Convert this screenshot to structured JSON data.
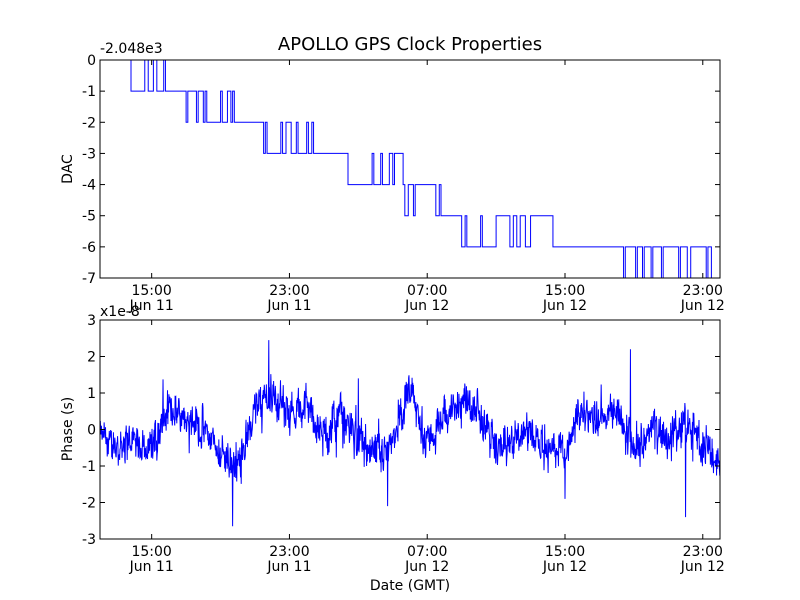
{
  "chart_data": [
    {
      "type": "line",
      "title": "APOLLO GPS Clock Properties",
      "ylabel": "DAC",
      "xlabel": "",
      "offset_label": "-2.048e3",
      "ylim": [
        -7,
        0
      ],
      "yticks": [
        "0",
        "-1",
        "-2",
        "-3",
        "-4",
        "-5",
        "-6",
        "-7"
      ],
      "xlim": [
        0,
        36
      ],
      "xticks": [
        {
          "t": 3,
          "time": "15:00",
          "date": "Jun 11"
        },
        {
          "t": 11,
          "time": "23:00",
          "date": "Jun 11"
        },
        {
          "t": 19,
          "time": "07:00",
          "date": "Jun 12"
        },
        {
          "t": 27,
          "time": "15:00",
          "date": "Jun 12"
        },
        {
          "t": 35,
          "time": "23:00",
          "date": "Jun 12"
        }
      ],
      "series": [
        {
          "name": "DAC",
          "color": "#0000ff",
          "note": "stepwise DAC value (hours since 12:00 Jun 11, DAC offset from -2048)",
          "points": [
            [
              0,
              0
            ],
            [
              1.8,
              0
            ],
            [
              1.8,
              -1
            ],
            [
              2.6,
              -1
            ],
            [
              2.6,
              0
            ],
            [
              2.8,
              0
            ],
            [
              2.8,
              -1
            ],
            [
              3.1,
              -1
            ],
            [
              3.1,
              0
            ],
            [
              3.3,
              0
            ],
            [
              3.3,
              -1
            ],
            [
              3.7,
              -1
            ],
            [
              3.7,
              0
            ],
            [
              3.8,
              0
            ],
            [
              3.8,
              -1
            ],
            [
              5.0,
              -1
            ],
            [
              5.0,
              -2
            ],
            [
              5.1,
              -2
            ],
            [
              5.1,
              -1
            ],
            [
              5.6,
              -1
            ],
            [
              5.6,
              -2
            ],
            [
              5.7,
              -2
            ],
            [
              5.7,
              -1
            ],
            [
              6.0,
              -1
            ],
            [
              6.0,
              -2
            ],
            [
              6.1,
              -2
            ],
            [
              6.1,
              -1
            ],
            [
              6.2,
              -1
            ],
            [
              6.2,
              -2
            ],
            [
              7.0,
              -2
            ],
            [
              7.0,
              -1
            ],
            [
              7.1,
              -1
            ],
            [
              7.1,
              -2
            ],
            [
              7.4,
              -2
            ],
            [
              7.4,
              -1
            ],
            [
              7.6,
              -1
            ],
            [
              7.6,
              -2
            ],
            [
              7.7,
              -2
            ],
            [
              7.7,
              -1
            ],
            [
              7.8,
              -1
            ],
            [
              7.8,
              -2
            ],
            [
              9.5,
              -2
            ],
            [
              9.5,
              -3
            ],
            [
              9.6,
              -3
            ],
            [
              9.6,
              -2
            ],
            [
              9.7,
              -2
            ],
            [
              9.7,
              -3
            ],
            [
              10.5,
              -3
            ],
            [
              10.5,
              -2
            ],
            [
              10.6,
              -2
            ],
            [
              10.6,
              -3
            ],
            [
              10.8,
              -3
            ],
            [
              10.8,
              -2
            ],
            [
              11.1,
              -2
            ],
            [
              11.1,
              -3
            ],
            [
              11.4,
              -3
            ],
            [
              11.4,
              -2
            ],
            [
              11.5,
              -2
            ],
            [
              11.5,
              -3
            ],
            [
              12.0,
              -3
            ],
            [
              12.0,
              -2
            ],
            [
              12.1,
              -2
            ],
            [
              12.1,
              -3
            ],
            [
              12.3,
              -3
            ],
            [
              12.3,
              -2
            ],
            [
              12.4,
              -2
            ],
            [
              12.4,
              -3
            ],
            [
              14.4,
              -3
            ],
            [
              14.4,
              -4
            ],
            [
              15.8,
              -4
            ],
            [
              15.8,
              -3
            ],
            [
              15.9,
              -3
            ],
            [
              15.9,
              -4
            ],
            [
              16.3,
              -4
            ],
            [
              16.3,
              -3
            ],
            [
              16.4,
              -3
            ],
            [
              16.4,
              -4
            ],
            [
              16.8,
              -4
            ],
            [
              16.8,
              -3
            ],
            [
              17.0,
              -3
            ],
            [
              17.0,
              -4
            ],
            [
              17.1,
              -4
            ],
            [
              17.1,
              -3
            ],
            [
              17.6,
              -3
            ],
            [
              17.6,
              -4
            ],
            [
              17.7,
              -4
            ],
            [
              17.7,
              -5
            ],
            [
              17.9,
              -5
            ],
            [
              17.9,
              -4
            ],
            [
              18.2,
              -4
            ],
            [
              18.2,
              -5
            ],
            [
              18.3,
              -5
            ],
            [
              18.3,
              -4
            ],
            [
              19.5,
              -4
            ],
            [
              19.5,
              -5
            ],
            [
              19.7,
              -5
            ],
            [
              19.7,
              -4
            ],
            [
              19.8,
              -4
            ],
            [
              19.8,
              -5
            ],
            [
              21.0,
              -5
            ],
            [
              21.0,
              -6
            ],
            [
              21.2,
              -6
            ],
            [
              21.2,
              -5
            ],
            [
              21.3,
              -5
            ],
            [
              21.3,
              -6
            ],
            [
              22.1,
              -6
            ],
            [
              22.1,
              -5
            ],
            [
              22.2,
              -5
            ],
            [
              22.2,
              -6
            ],
            [
              23.0,
              -6
            ],
            [
              23.0,
              -5
            ],
            [
              23.8,
              -5
            ],
            [
              23.8,
              -6
            ],
            [
              24.0,
              -6
            ],
            [
              24.0,
              -5
            ],
            [
              24.2,
              -5
            ],
            [
              24.2,
              -6
            ],
            [
              24.4,
              -6
            ],
            [
              24.4,
              -5
            ],
            [
              24.7,
              -5
            ],
            [
              24.7,
              -6
            ],
            [
              25.0,
              -6
            ],
            [
              25.0,
              -5
            ],
            [
              26.3,
              -5
            ],
            [
              26.3,
              -6
            ],
            [
              30.4,
              -6
            ],
            [
              30.4,
              -7
            ],
            [
              30.5,
              -7
            ],
            [
              30.5,
              -6
            ],
            [
              31.1,
              -6
            ],
            [
              31.1,
              -7
            ],
            [
              31.2,
              -7
            ],
            [
              31.2,
              -6
            ],
            [
              31.5,
              -6
            ],
            [
              31.5,
              -7
            ],
            [
              31.6,
              -7
            ],
            [
              31.6,
              -6
            ],
            [
              32.0,
              -6
            ],
            [
              32.0,
              -7
            ],
            [
              32.1,
              -7
            ],
            [
              32.1,
              -6
            ],
            [
              32.6,
              -6
            ],
            [
              32.6,
              -7
            ],
            [
              32.7,
              -7
            ],
            [
              32.7,
              -6
            ],
            [
              33.6,
              -6
            ],
            [
              33.6,
              -7
            ],
            [
              33.7,
              -7
            ],
            [
              33.7,
              -6
            ],
            [
              34.1,
              -6
            ],
            [
              34.1,
              -7
            ],
            [
              34.3,
              -7
            ],
            [
              34.3,
              -6
            ],
            [
              35.2,
              -6
            ],
            [
              35.2,
              -7
            ],
            [
              35.3,
              -7
            ],
            [
              35.3,
              -6
            ],
            [
              35.5,
              -6
            ],
            [
              35.5,
              -7
            ],
            [
              36,
              -7
            ]
          ]
        }
      ]
    },
    {
      "type": "line",
      "title": "",
      "ylabel": "Phase (s)",
      "xlabel": "Date (GMT)",
      "offset_label": "x1e-8",
      "ylim": [
        -3,
        3
      ],
      "yticks": [
        "3",
        "2",
        "1",
        "0",
        "-1",
        "-2",
        "-3"
      ],
      "xlim": [
        0,
        36
      ],
      "xticks": [
        {
          "t": 3,
          "time": "15:00",
          "date": "Jun 11"
        },
        {
          "t": 11,
          "time": "23:00",
          "date": "Jun 11"
        },
        {
          "t": 19,
          "time": "07:00",
          "date": "Jun 12"
        },
        {
          "t": 27,
          "time": "15:00",
          "date": "Jun 12"
        },
        {
          "t": 35,
          "time": "23:00",
          "date": "Jun 12"
        }
      ],
      "series": [
        {
          "name": "Phase",
          "color": "#0000ff",
          "note": "noisy phase trace (units of 1e-8 s); trend points, noise amplitude and extremes",
          "trend": [
            [
              0,
              -0.2
            ],
            [
              1,
              -0.5
            ],
            [
              2,
              -0.3
            ],
            [
              3,
              -0.5
            ],
            [
              4,
              0.5
            ],
            [
              5,
              0.5
            ],
            [
              6,
              0.0
            ],
            [
              7,
              -0.6
            ],
            [
              8,
              -1.0
            ],
            [
              9,
              0.5
            ],
            [
              10,
              1.0
            ],
            [
              11,
              0.5
            ],
            [
              12,
              0.7
            ],
            [
              13,
              -0.2
            ],
            [
              14,
              0.4
            ],
            [
              15,
              -0.3
            ],
            [
              16,
              -0.8
            ],
            [
              17,
              -0.3
            ],
            [
              18,
              1.0
            ],
            [
              19,
              -0.4
            ],
            [
              20,
              0.3
            ],
            [
              21,
              0.8
            ],
            [
              22,
              0.5
            ],
            [
              23,
              -0.5
            ],
            [
              24,
              -0.4
            ],
            [
              25,
              0.1
            ],
            [
              26,
              -0.6
            ],
            [
              27,
              -0.5
            ],
            [
              28,
              0.5
            ],
            [
              29,
              0.3
            ],
            [
              30,
              0.5
            ],
            [
              31,
              -0.5
            ],
            [
              32,
              0.0
            ],
            [
              33,
              -0.3
            ],
            [
              34,
              0.2
            ],
            [
              35,
              -0.4
            ],
            [
              36,
              -1.0
            ]
          ],
          "noise_amplitude": 0.55,
          "extremes": [
            [
              9.8,
              2.45
            ],
            [
              7.7,
              -2.65
            ],
            [
              34.0,
              -2.4
            ],
            [
              30.8,
              2.2
            ],
            [
              16.7,
              -2.1
            ],
            [
              27.0,
              -1.9
            ],
            [
              15.0,
              1.4
            ]
          ]
        }
      ]
    }
  ]
}
